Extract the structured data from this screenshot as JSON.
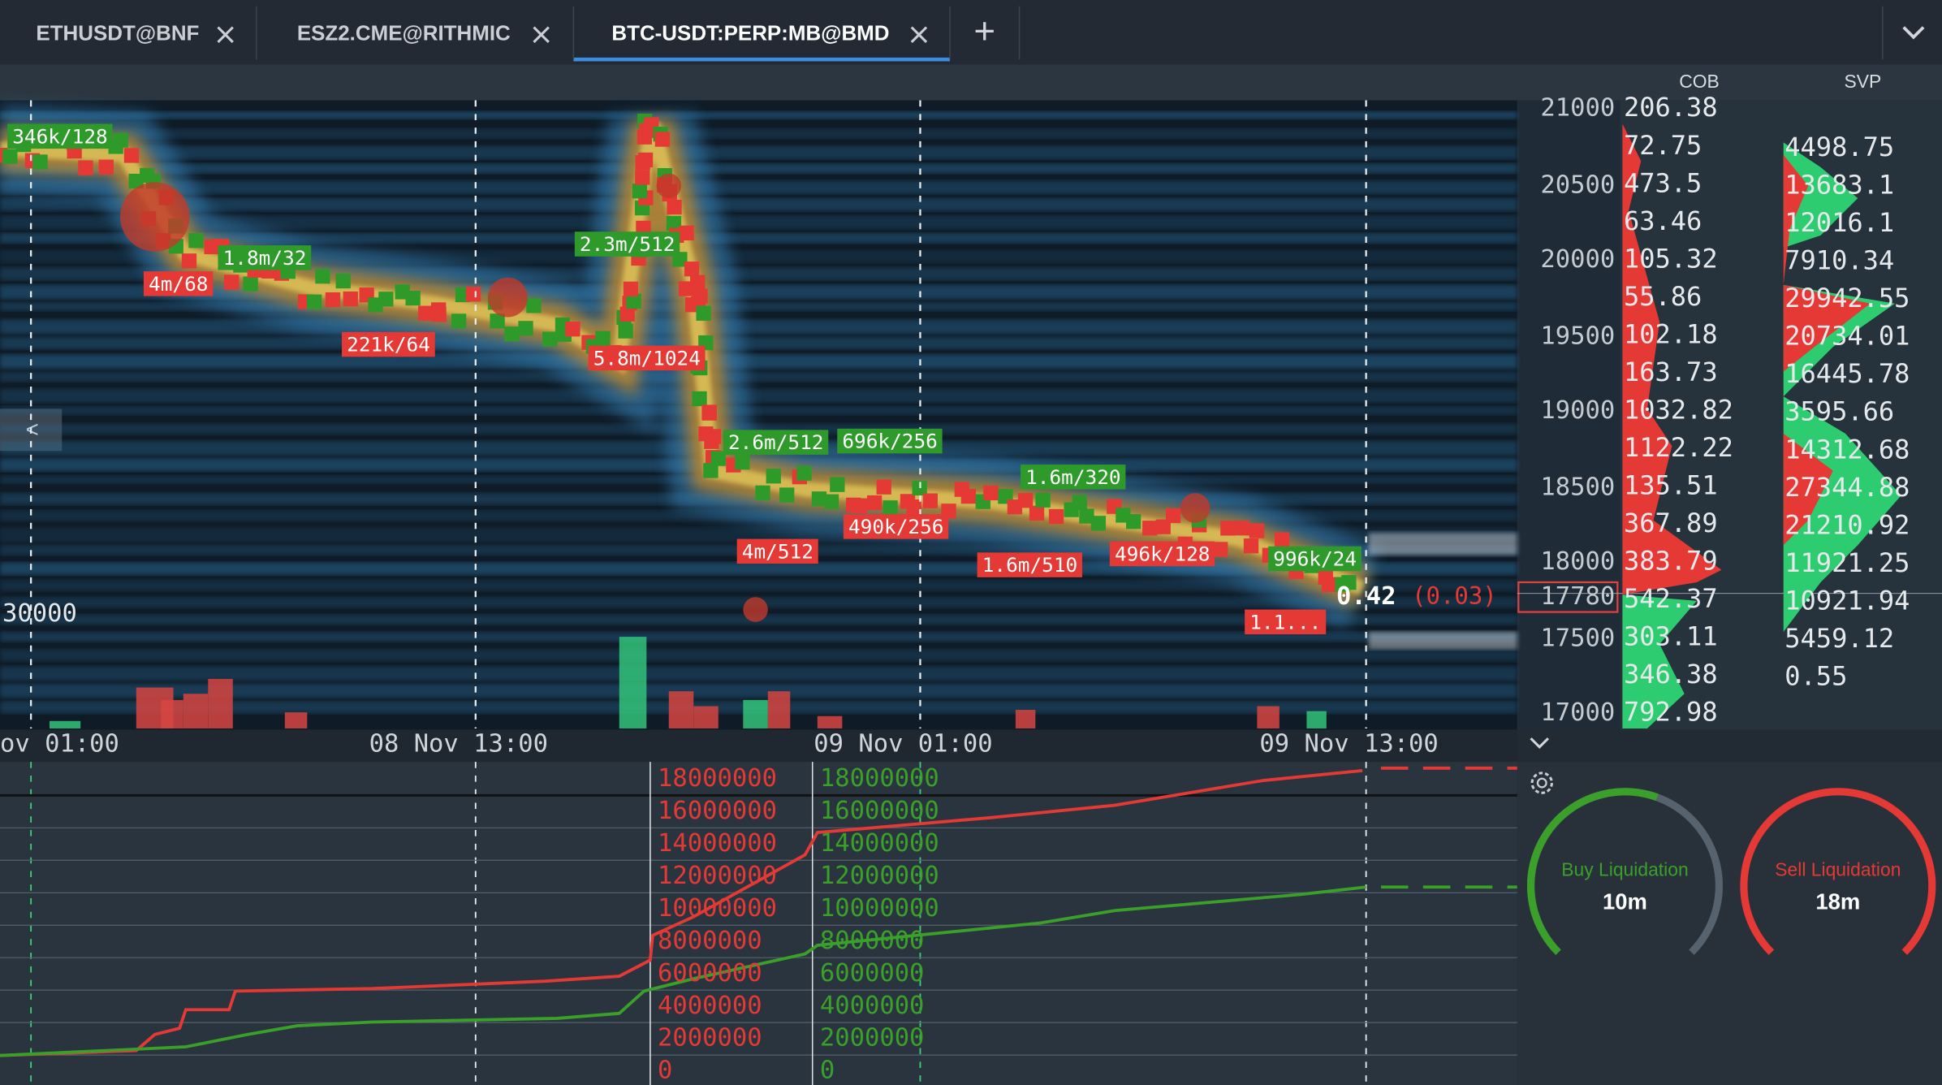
{
  "tabs": [
    {
      "label": "ETHUSDT@BNF"
    },
    {
      "label": "ESZ2.CME@RITHMIC"
    },
    {
      "label": "BTC-USDT:PERP:MB@BMD"
    }
  ],
  "panel_headers": [
    "COB",
    "SVP"
  ],
  "left_price_label": "30000",
  "price_axis": [
    "21000",
    "20500",
    "20000",
    "19500",
    "19000",
    "18500",
    "18000",
    "17780",
    "17500",
    "17000"
  ],
  "cob": [
    "206.38",
    "72.75",
    "473.5",
    "63.46",
    "105.32",
    "55.86",
    "102.18",
    "163.73",
    "1032.82",
    "1122.22",
    "135.51",
    "367.89",
    "383.79",
    "542.37",
    "303.11",
    "346.38",
    "792.98"
  ],
  "svp": [
    "4498.75",
    "13683.1",
    "12016.1",
    "7910.34",
    "29942.55",
    "20734.01",
    "16445.78",
    "3595.66",
    "14312.68",
    "27344.88",
    "21210.92",
    "11921.25",
    "10921.94",
    "5459.12",
    "0.55"
  ],
  "current_price": {
    "value": "0.42",
    "change": "(0.03)"
  },
  "buy_labels": [
    "346k/128",
    "1.8m/32",
    "2.3m/512",
    "2.6m/512",
    "696k/256",
    "1.6m/320",
    "996k/24"
  ],
  "sell_labels": [
    "4m/68",
    "221k/64",
    "5.8m/1024",
    "490k/256",
    "4m/512",
    "1.6m/510",
    "496k/128",
    "1.1..."
  ],
  "time_axis": [
    "ov 01:00",
    "08 Nov 13:00",
    "09 Nov 01:00",
    "09 Nov 13:00"
  ],
  "cumulative_axis": {
    "sell": [
      "18000000",
      "16000000",
      "14000000",
      "12000000",
      "10000000",
      "8000000",
      "6000000",
      "4000000",
      "2000000",
      "0"
    ],
    "buy": [
      "18000000",
      "16000000",
      "14000000",
      "12000000",
      "10000000",
      "8000000",
      "6000000",
      "4000000",
      "2000000",
      "0"
    ]
  },
  "gauges": [
    {
      "title": "Buy Liquidation",
      "value": "10m"
    },
    {
      "title": "Sell Liquidation",
      "value": "18m"
    }
  ],
  "back_button": "<"
}
